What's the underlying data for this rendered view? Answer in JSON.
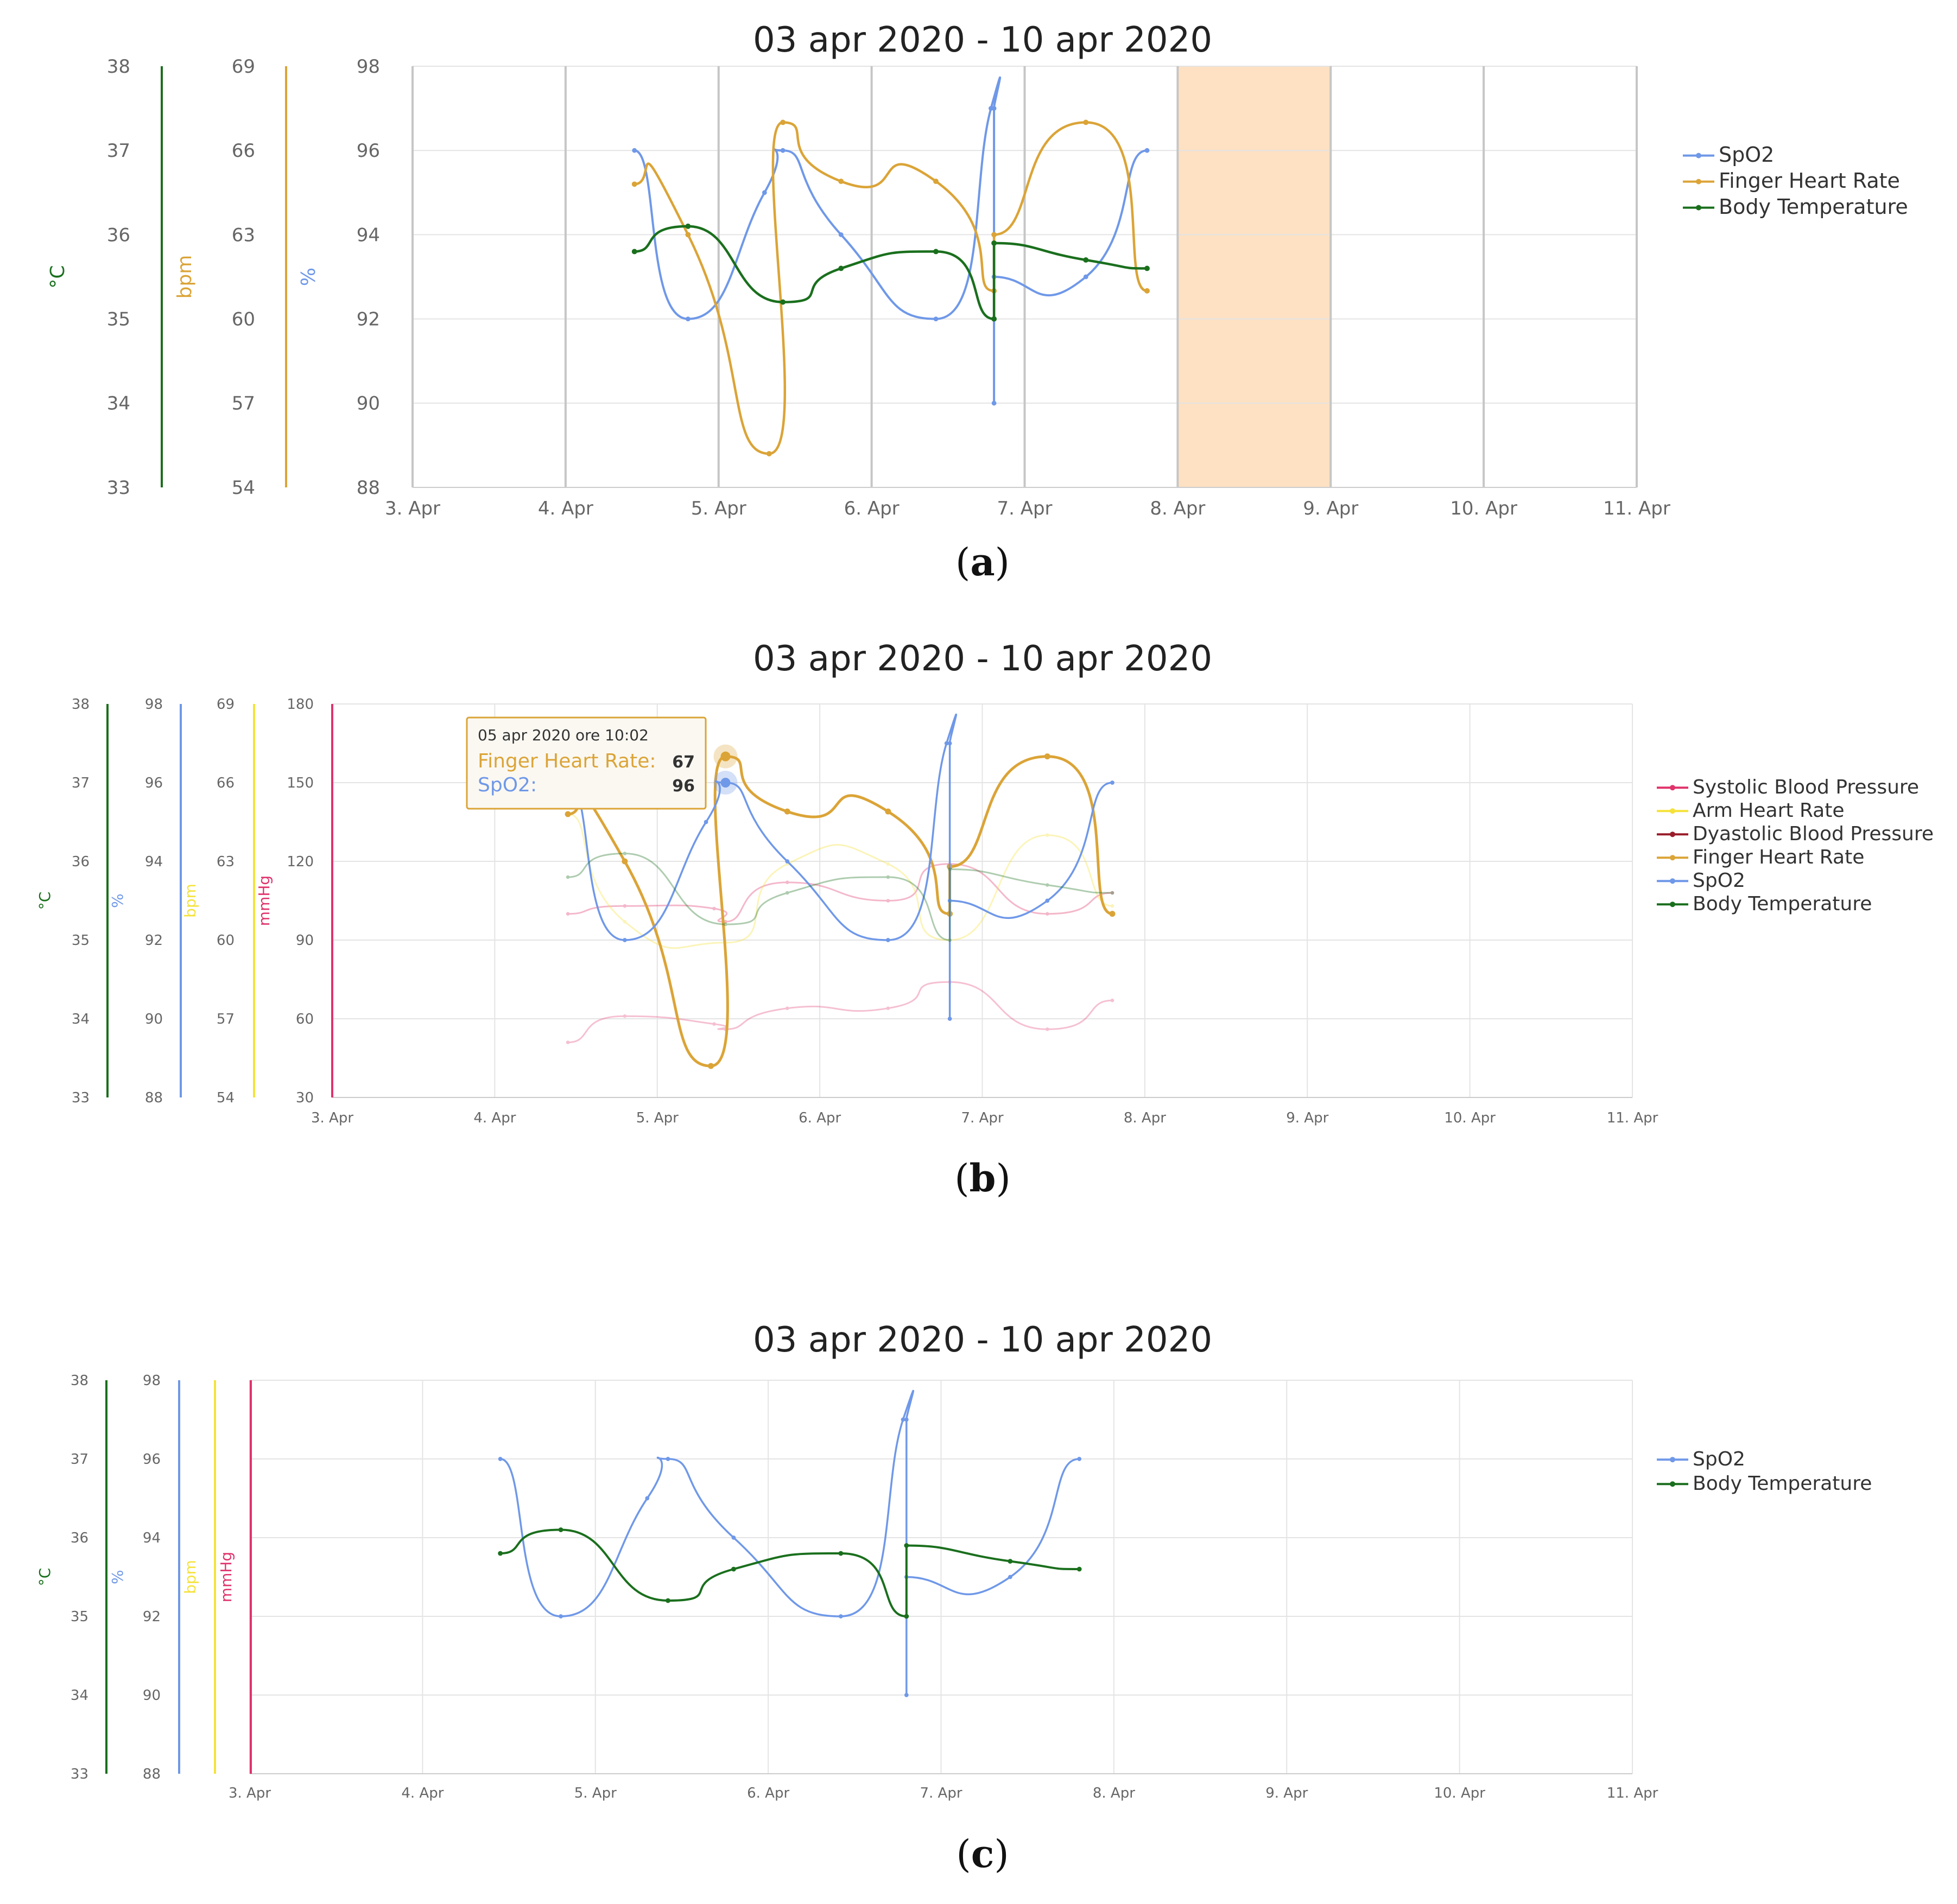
{
  "colors": {
    "spo2": "#6f98e8",
    "finger_hr": "#dba437",
    "body_temp": "#1a6f1d",
    "arm_hr": "#f5e23a",
    "systolic": "#e0336b",
    "dyastolic": "#9a1d2b",
    "grid": "#e4e4e4",
    "band": "#fde1c2",
    "tick_text": "#666666"
  },
  "chart_data": [
    {
      "id": "a",
      "type": "line",
      "title": "03 apr 2020 - 10 apr 2020",
      "caption_label": "a",
      "x_ticks": [
        "3. Apr",
        "4. Apr",
        "5. Apr",
        "6. Apr",
        "7. Apr",
        "8. Apr",
        "9. Apr",
        "10. Apr",
        "11. Apr"
      ],
      "xlim": [
        3,
        11
      ],
      "x_grid": "gray",
      "highlight_band": [
        8,
        9
      ],
      "axes": [
        {
          "unit": "°C",
          "color": "body_temp",
          "ticks": [
            "33",
            "34",
            "35",
            "36",
            "37",
            "38"
          ],
          "range": [
            33,
            38
          ]
        },
        {
          "unit": "bpm",
          "color": "finger_hr",
          "ticks": [
            "54",
            "57",
            "60",
            "63",
            "66",
            "69"
          ],
          "range": [
            54,
            69
          ]
        },
        {
          "unit": "%",
          "color": "spo2",
          "ticks": [
            "88",
            "90",
            "92",
            "94",
            "96",
            "98"
          ],
          "range": [
            88,
            98
          ]
        }
      ],
      "legend": [
        {
          "label": "SpO2",
          "color": "spo2"
        },
        {
          "label": "Finger Heart Rate",
          "color": "finger_hr"
        },
        {
          "label": "Body Temperature",
          "color": "body_temp"
        }
      ],
      "series": [
        {
          "name": "SpO2",
          "color": "spo2",
          "axis": 2,
          "width": 4,
          "x": [
            4.45,
            4.8,
            5.3,
            5.42,
            5.8,
            6.42,
            6.78,
            6.8,
            6.8,
            6.8,
            7.4,
            7.8
          ],
          "y": [
            96,
            92,
            95,
            96,
            94,
            92,
            97,
            97,
            90,
            93,
            93,
            96
          ]
        },
        {
          "name": "Finger Heart Rate",
          "color": "finger_hr",
          "axis": 1,
          "width": 4.5,
          "x": [
            4.45,
            4.8,
            5.33,
            5.42,
            5.8,
            6.42,
            6.8,
            6.8,
            7.4,
            7.8
          ],
          "y": [
            64.8,
            63,
            55.2,
            67,
            64.9,
            64.9,
            61,
            63,
            67,
            61
          ],
          "tension": 0.45
        },
        {
          "name": "Body Temperature",
          "color": "body_temp",
          "axis": 0,
          "width": 4.5,
          "x": [
            4.45,
            4.8,
            5.42,
            5.8,
            6.42,
            6.8,
            6.8,
            7.4,
            7.8
          ],
          "y": [
            35.8,
            36.1,
            35.2,
            35.6,
            35.8,
            35.0,
            35.9,
            35.7,
            35.6
          ]
        }
      ]
    },
    {
      "id": "b",
      "type": "line",
      "title": "03 apr 2020 - 10 apr 2020",
      "caption_label": "b",
      "x_ticks": [
        "3. Apr",
        "4. Apr",
        "5. Apr",
        "6. Apr",
        "7. Apr",
        "8. Apr",
        "9. Apr",
        "10. Apr",
        "11. Apr"
      ],
      "xlim": [
        3,
        11
      ],
      "x_grid": "light",
      "axes": [
        {
          "unit": "°C",
          "color": "body_temp",
          "ticks": [
            "33",
            "34",
            "35",
            "36",
            "37",
            "38"
          ],
          "range": [
            33,
            38
          ]
        },
        {
          "unit": "%",
          "color": "spo2",
          "ticks": [
            "88",
            "90",
            "92",
            "94",
            "96",
            "98"
          ],
          "range": [
            88,
            98
          ]
        },
        {
          "unit": "bpm",
          "color": "arm_hr",
          "ticks": [
            "54",
            "57",
            "60",
            "63",
            "66",
            "69"
          ],
          "range": [
            54,
            69
          ]
        },
        {
          "unit": "mmHg",
          "color": "systolic",
          "ticks": [
            "30",
            "60",
            "90",
            "120",
            "150",
            "180"
          ],
          "range": [
            30,
            180
          ]
        }
      ],
      "legend": [
        {
          "label": "Systolic Blood Pressure",
          "color": "systolic"
        },
        {
          "label": "Arm Heart Rate",
          "color": "arm_hr"
        },
        {
          "label": "Dyastolic Blood Pressure",
          "color": "dyastolic"
        },
        {
          "label": "Finger Heart Rate",
          "color": "finger_hr"
        },
        {
          "label": "SpO2",
          "color": "spo2"
        },
        {
          "label": "Body Temperature",
          "color": "body_temp"
        }
      ],
      "series": [
        {
          "name": "Systolic Blood Pressure",
          "color": "systolic",
          "axis": 3,
          "width": 3,
          "opacity": 0.35,
          "x": [
            4.45,
            4.8,
            5.35,
            5.42,
            5.8,
            6.42,
            6.8,
            7.4,
            7.8
          ],
          "y": [
            100,
            103,
            102,
            97,
            112,
            105,
            119,
            100,
            108
          ]
        },
        {
          "name": "Arm Heart Rate",
          "color": "arm_hr",
          "axis": 2,
          "width": 3,
          "opacity": 0.35,
          "x": [
            4.45,
            4.8,
            5.42,
            5.8,
            6.42,
            6.8,
            7.4,
            7.8
          ],
          "y": [
            64.8,
            60.7,
            59.9,
            62.9,
            62.9,
            60,
            64,
            61.3
          ]
        },
        {
          "name": "Dyastolic Blood Pressure",
          "color": "systolic",
          "axis": 3,
          "width": 3,
          "opacity": 0.3,
          "x": [
            4.45,
            4.8,
            5.35,
            5.42,
            5.8,
            6.42,
            6.8,
            7.4,
            7.8
          ],
          "y": [
            51,
            61,
            58,
            56,
            64,
            64,
            74,
            56,
            67
          ]
        },
        {
          "name": "Finger Heart Rate",
          "color": "finger_hr",
          "axis": 2,
          "width": 5,
          "x": [
            4.45,
            4.8,
            5.33,
            5.42,
            5.8,
            6.42,
            6.8,
            6.8,
            7.4,
            7.8
          ],
          "y": [
            64.8,
            63,
            55.2,
            67,
            64.9,
            64.9,
            61,
            62.8,
            67,
            61
          ],
          "tension": 0.45
        },
        {
          "name": "SpO2",
          "color": "spo2",
          "axis": 1,
          "width": 3.5,
          "x": [
            4.45,
            4.8,
            5.3,
            5.42,
            5.8,
            6.42,
            6.78,
            6.8,
            6.8,
            6.8,
            7.4,
            7.8
          ],
          "y": [
            96,
            92,
            95,
            96,
            94,
            92,
            97,
            97,
            90,
            93,
            93,
            96
          ]
        },
        {
          "name": "Body Temperature",
          "color": "body_temp",
          "axis": 0,
          "width": 3,
          "opacity": 0.35,
          "x": [
            4.45,
            4.8,
            5.42,
            5.8,
            6.42,
            6.8,
            6.8,
            7.4,
            7.8
          ],
          "y": [
            35.8,
            36.1,
            35.2,
            35.6,
            35.8,
            35.0,
            35.9,
            35.7,
            35.6
          ]
        }
      ],
      "tooltip": {
        "title": "05 apr 2020 ore 10:02",
        "rows": [
          {
            "label": "Finger Heart Rate:",
            "value": "67",
            "color": "finger_hr"
          },
          {
            "label": "SpO2:",
            "value": "96",
            "color": "spo2"
          }
        ],
        "anchor_x": 5.42
      }
    },
    {
      "id": "c",
      "type": "line",
      "title": "03 apr 2020 - 10 apr 2020",
      "caption_label": "c",
      "x_ticks": [
        "3. Apr",
        "4. Apr",
        "5. Apr",
        "6. Apr",
        "7. Apr",
        "8. Apr",
        "9. Apr",
        "10. Apr",
        "11. Apr"
      ],
      "xlim": [
        3,
        11
      ],
      "x_grid": "light",
      "axes": [
        {
          "unit": "°C",
          "color": "body_temp",
          "ticks": [
            "33",
            "34",
            "35",
            "36",
            "37",
            "38"
          ],
          "range": [
            33,
            38
          ]
        },
        {
          "unit": "%",
          "color": "spo2",
          "ticks": [
            "88",
            "90",
            "92",
            "94",
            "96",
            "98"
          ],
          "range": [
            88,
            98
          ]
        },
        {
          "unit": "bpm",
          "color": "arm_hr",
          "ticks": [],
          "range": [
            54,
            69
          ]
        },
        {
          "unit": "mmHg",
          "color": "systolic",
          "ticks": [],
          "range": [
            30,
            180
          ]
        }
      ],
      "legend": [
        {
          "label": "SpO2",
          "color": "spo2"
        },
        {
          "label": "Body Temperature",
          "color": "body_temp"
        }
      ],
      "series": [
        {
          "name": "SpO2",
          "color": "spo2",
          "axis": 1,
          "width": 3.5,
          "x": [
            4.45,
            4.8,
            5.3,
            5.42,
            5.8,
            6.42,
            6.78,
            6.8,
            6.8,
            6.8,
            7.4,
            7.8
          ],
          "y": [
            96,
            92,
            95,
            96,
            94,
            92,
            97,
            97,
            90,
            93,
            93,
            96
          ]
        },
        {
          "name": "Body Temperature",
          "color": "body_temp",
          "axis": 0,
          "width": 4,
          "x": [
            4.45,
            4.8,
            5.42,
            5.8,
            6.42,
            6.8,
            6.8,
            7.4,
            7.8
          ],
          "y": [
            35.8,
            36.1,
            35.2,
            35.6,
            35.8,
            35.0,
            35.9,
            35.7,
            35.6
          ]
        }
      ]
    }
  ]
}
